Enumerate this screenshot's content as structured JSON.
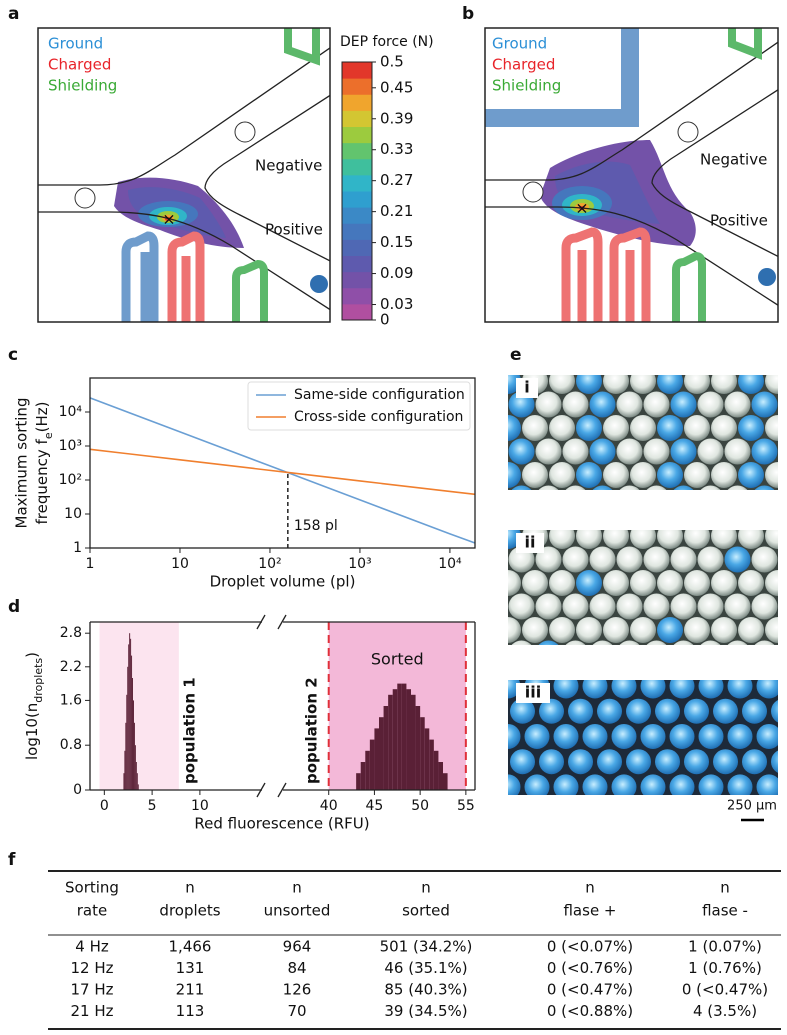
{
  "panel_a": {
    "label": "a",
    "legend": [
      "Ground",
      "Charged",
      "Shielding"
    ],
    "outlets": [
      "Negative",
      "Positive"
    ],
    "colorbar": {
      "title": "DEP force (N)",
      "ticks": [
        0.5,
        0.45,
        0.39,
        0.33,
        0.27,
        0.21,
        0.15,
        0.09,
        0.03,
        0
      ],
      "lim": [
        0,
        0.5
      ],
      "colors": [
        "#b04fa0",
        "#8f4fa8",
        "#7352a8",
        "#5e5aae",
        "#4f68b4",
        "#4577bd",
        "#3b89c6",
        "#2f9fcf",
        "#30b5c8",
        "#3fbf9d",
        "#62c46e",
        "#9ccb3e",
        "#d3c632",
        "#f0a52d",
        "#ec6f2b",
        "#e2372a"
      ]
    }
  },
  "panel_b": {
    "label": "b",
    "legend": [
      "Ground",
      "Charged",
      "Shielding"
    ],
    "outlets": [
      "Negative",
      "Positive"
    ]
  },
  "chart_data": [
    {
      "type": "line",
      "panel_label": "c",
      "xlabel": "Droplet volume (pl)",
      "ylabel": {
        "line1": "Maximum sorting",
        "text": "frequency f",
        "sub": "e",
        "end": "(Hz)"
      },
      "xscale": "log",
      "yscale": "log",
      "legend": "upper right",
      "x": [
        1,
        10,
        100,
        158,
        1000,
        10000,
        19000
      ],
      "series": [
        {
          "name": "Same-side configuration",
          "color": "#6a9fd4",
          "values": [
            26000,
            2600,
            260,
            165,
            26,
            2.6,
            1.4
          ]
        },
        {
          "name": "Cross-side configuration",
          "color": "#f07f2e",
          "values": [
            800,
            392,
            192,
            167,
            94,
            46,
            38
          ]
        }
      ],
      "annotation": {
        "text": "158 pl",
        "x": 158,
        "y": 165
      },
      "xlim": [
        1,
        19000
      ],
      "ylim": [
        1,
        100000
      ],
      "xticks": [
        1,
        10,
        {
          "value": 100,
          "label": "10²"
        },
        {
          "value": 1000,
          "label": "10³"
        },
        {
          "value": 10000,
          "label": "10⁴"
        }
      ],
      "yticks": [
        1,
        10,
        {
          "value": 100,
          "label": "10²"
        },
        {
          "value": 1000,
          "label": "10³"
        },
        {
          "value": 10000,
          "label": "10⁴"
        }
      ]
    },
    {
      "type": "histogram",
      "panel_label": "d",
      "xlabel": "Red fluorescence (RFU)",
      "ylabel": {
        "text": "log10(n",
        "sub": "droplets",
        "end": ")"
      },
      "xlims": [
        [
          -1.5,
          16.5
        ],
        [
          35,
          56
        ]
      ],
      "ylim": [
        0,
        3
      ],
      "xticks": [
        0,
        5,
        10,
        40,
        45,
        50,
        55
      ],
      "yticks": [
        0,
        0.8,
        1.6,
        2.2,
        2.8
      ],
      "shaded": [
        {
          "from": -0.5,
          "to": 7.8,
          "color": "#fce4ef"
        },
        {
          "from": 40,
          "to": 55,
          "color": "#f3b8d8",
          "label": "Sorted",
          "edge_color": "#e0303a"
        }
      ],
      "series": [
        {
          "name": "population 1",
          "color": "#5a2036",
          "bins": [
            2.0,
            2.1,
            2.2,
            2.3,
            2.4,
            2.5,
            2.6,
            2.7,
            2.8,
            2.9,
            3.0,
            3.1,
            3.2,
            3.3,
            3.4,
            3.5,
            3.6
          ],
          "counts": [
            0.3,
            0.7,
            1.2,
            1.7,
            2.2,
            2.6,
            2.8,
            2.7,
            2.4,
            2.0,
            1.6,
            1.2,
            0.8,
            0.5,
            0.3,
            0.1
          ]
        },
        {
          "name": "population 2",
          "color": "#5a2036",
          "bins": [
            43,
            43.5,
            44,
            44.5,
            45,
            45.5,
            46,
            46.5,
            47,
            47.5,
            48,
            48.5,
            49,
            49.5,
            50,
            50.5,
            51,
            51.5,
            52,
            52.5,
            53
          ],
          "counts": [
            0.3,
            0.5,
            0.7,
            0.9,
            1.1,
            1.3,
            1.5,
            1.7,
            1.8,
            1.9,
            1.9,
            1.8,
            1.7,
            1.5,
            1.3,
            1.1,
            0.9,
            0.7,
            0.5,
            0.3
          ]
        }
      ]
    }
  ],
  "panel_e": {
    "label": "e",
    "images": [
      "i",
      "ii",
      "iii"
    ],
    "scale_bar": "250 µm"
  },
  "table": {
    "label": "f",
    "header": [
      [
        "Sorting",
        "rate"
      ],
      [
        "n",
        "droplets"
      ],
      [
        "n",
        "unsorted"
      ],
      [
        "n",
        "sorted"
      ],
      [
        "n",
        "flase +"
      ],
      [
        "n",
        "flase -"
      ]
    ],
    "rows": [
      [
        "4 Hz",
        "1,466",
        "964",
        "501 (34.2%)",
        "0 (<0.07%)",
        "1 (0.07%)"
      ],
      [
        "12 Hz",
        "131",
        "84",
        "46 (35.1%)",
        "0 (<0.76%)",
        "1 (0.76%)"
      ],
      [
        "17 Hz",
        "211",
        "126",
        "85 (40.3%)",
        "0 (<0.47%)",
        "0 (<0.47%)"
      ],
      [
        "21 Hz",
        "113",
        "70",
        "39 (34.5%)",
        "0 (<0.88%)",
        "4 (3.5%)"
      ]
    ]
  }
}
